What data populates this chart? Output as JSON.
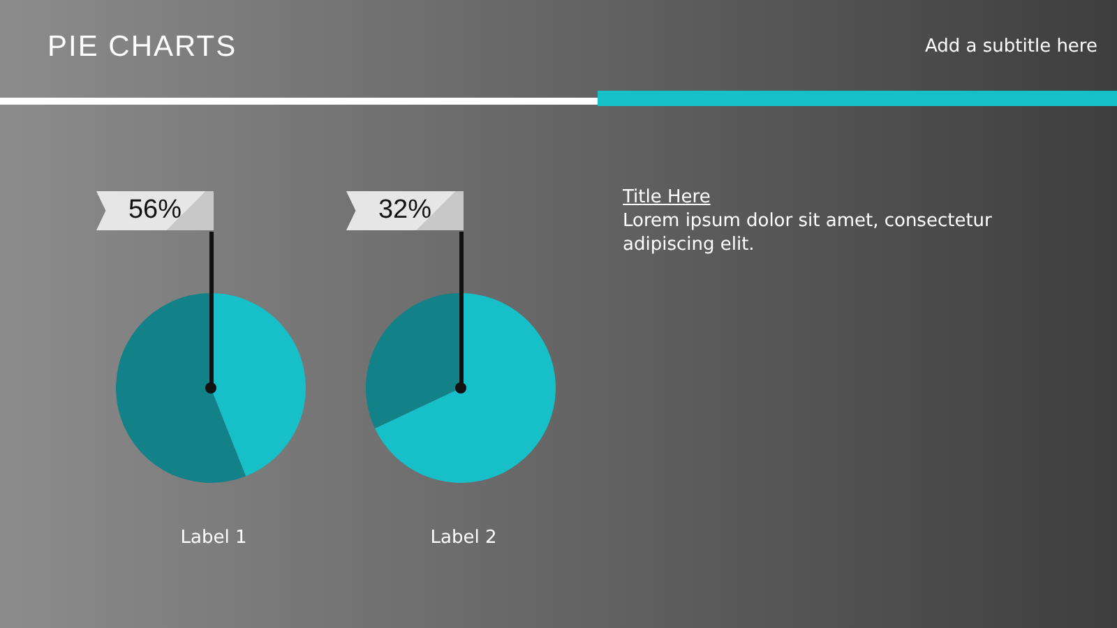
{
  "chart_data": [
    {
      "type": "other",
      "title": "PIE CHARTS",
      "subtitle": "Add a subtitle here"
    },
    {
      "type": "pie",
      "xlabel": "Label 1",
      "categories": [
        null,
        null
      ],
      "values": [
        44,
        56
      ],
      "colors": [
        "#17bfc8",
        "#128188"
      ],
      "value_labels": [
        null,
        "56%"
      ]
    },
    {
      "type": "pie",
      "xlabel": "Label 2",
      "categories": [
        null,
        null
      ],
      "values": [
        68,
        32
      ],
      "colors": [
        "#17bfc8",
        "#128188"
      ],
      "value_labels": [
        null,
        "32%"
      ]
    },
    {
      "type": "other",
      "annotations": [
        "Title Here",
        "Lorem ipsum dolor sit amet, consectetur adipiscing elit."
      ]
    }
  ]
}
